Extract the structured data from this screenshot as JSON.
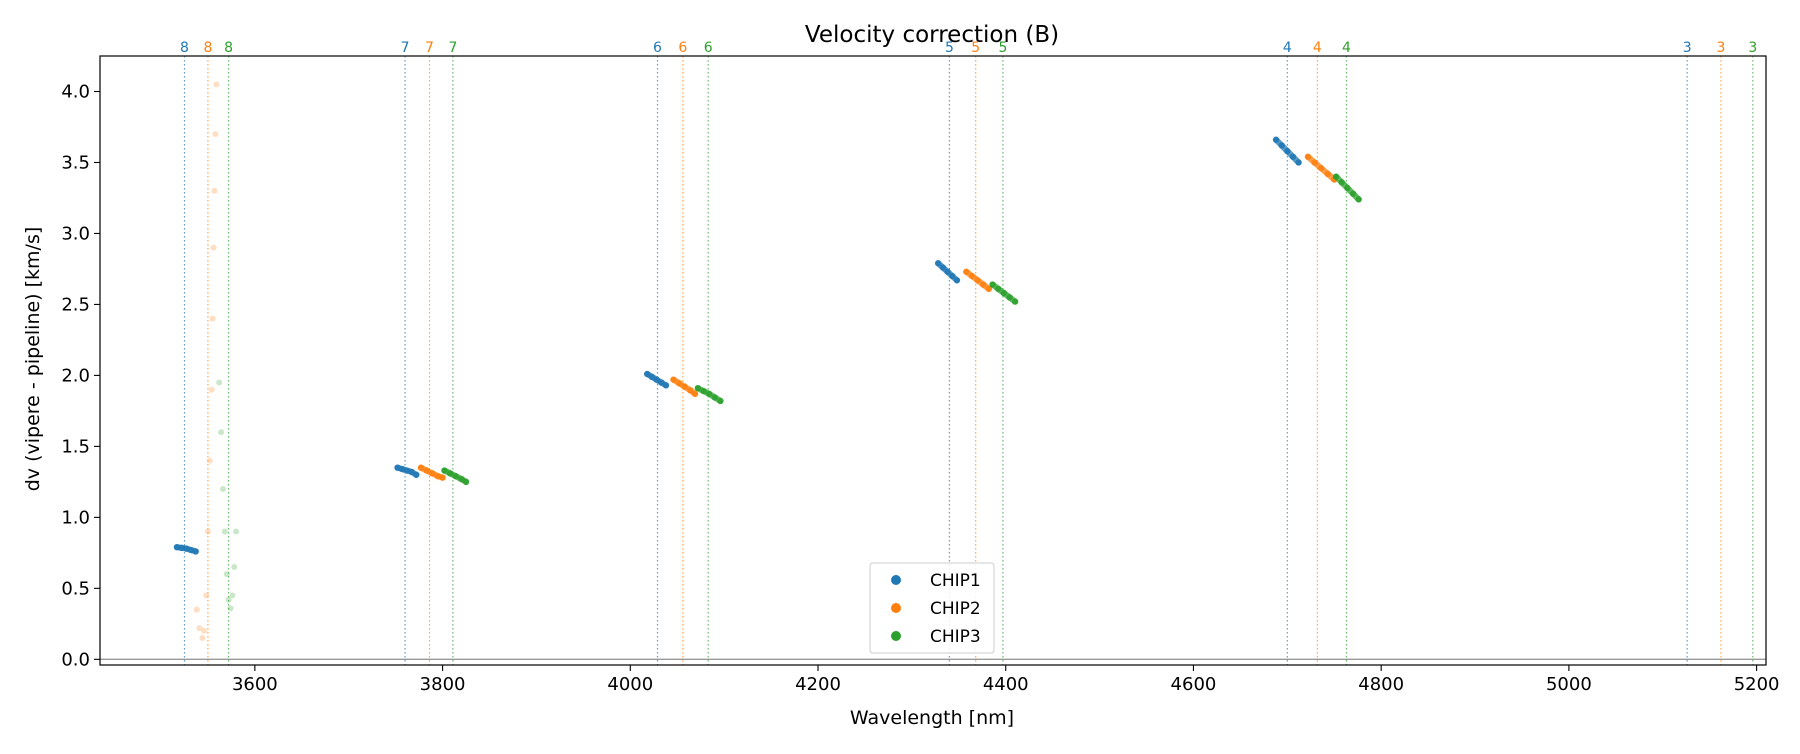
{
  "chart_data": {
    "type": "scatter",
    "title": "Velocity correction (B)",
    "xlabel": "Wavelength [nm]",
    "ylabel": "dv (vipere - pipeline) [km/s]",
    "xlim": [
      3435,
      5210
    ],
    "ylim": [
      -0.04,
      4.25
    ],
    "xticks": [
      3600,
      3800,
      4000,
      4200,
      4400,
      4600,
      4800,
      5000,
      5200
    ],
    "xtick_labels": [
      "3600",
      "3800",
      "4000",
      "4200",
      "4400",
      "4600",
      "4800",
      "5000",
      "5200"
    ],
    "yticks": [
      0.0,
      0.5,
      1.0,
      1.5,
      2.0,
      2.5,
      3.0,
      3.5,
      4.0
    ],
    "ytick_labels": [
      "0.0",
      "0.5",
      "1.0",
      "1.5",
      "2.0",
      "2.5",
      "3.0",
      "3.5",
      "4.0"
    ],
    "zero_line": 0,
    "legend": {
      "position": "bottom-center",
      "entries": [
        "CHIP1",
        "CHIP2",
        "CHIP3"
      ]
    },
    "colors": {
      "CHIP1": "#1f77b4",
      "CHIP2": "#ff7f0e",
      "CHIP3": "#2ca02c"
    },
    "order_markers": [
      {
        "order": "8",
        "label": "8",
        "chip": "CHIP1",
        "x": 3525
      },
      {
        "order": "8",
        "label": "8",
        "chip": "CHIP2",
        "x": 3550
      },
      {
        "order": "8",
        "label": "8",
        "chip": "CHIP3",
        "x": 3572
      },
      {
        "order": "7",
        "label": "7",
        "chip": "CHIP1",
        "x": 3760
      },
      {
        "order": "7",
        "label": "7",
        "chip": "CHIP2",
        "x": 3786
      },
      {
        "order": "7",
        "label": "7",
        "chip": "CHIP3",
        "x": 3811
      },
      {
        "order": "6",
        "label": "6",
        "chip": "CHIP1",
        "x": 4029
      },
      {
        "order": "6",
        "label": "6",
        "chip": "CHIP2",
        "x": 4056
      },
      {
        "order": "6",
        "label": "6",
        "chip": "CHIP3",
        "x": 4083
      },
      {
        "order": "5",
        "label": "5",
        "chip": "CHIP1",
        "x": 4340
      },
      {
        "order": "5",
        "label": "5",
        "chip": "CHIP2",
        "x": 4368
      },
      {
        "order": "5",
        "label": "5",
        "chip": "CHIP3",
        "x": 4397
      },
      {
        "order": "4",
        "label": "4",
        "chip": "CHIP1",
        "x": 4700
      },
      {
        "order": "4",
        "label": "4",
        "chip": "CHIP2",
        "x": 4732
      },
      {
        "order": "4",
        "label": "4",
        "chip": "CHIP3",
        "x": 4763
      },
      {
        "order": "3",
        "label": "3",
        "chip": "CHIP1",
        "x": 5126
      },
      {
        "order": "3",
        "label": "3",
        "chip": "CHIP2",
        "x": 5162
      },
      {
        "order": "3",
        "label": "3",
        "chip": "CHIP3",
        "x": 5196
      }
    ],
    "series": [
      {
        "name": "CHIP1",
        "order": "8",
        "x": [
          3517,
          3522,
          3527,
          3532,
          3537
        ],
        "y": [
          0.79,
          0.785,
          0.78,
          0.77,
          0.76
        ]
      },
      {
        "name": "CHIP1",
        "order": "7",
        "x": [
          3752,
          3757,
          3762,
          3767,
          3772
        ],
        "y": [
          1.35,
          1.34,
          1.33,
          1.32,
          1.3
        ]
      },
      {
        "name": "CHIP1",
        "order": "6",
        "x": [
          4018,
          4023,
          4028,
          4033,
          4038
        ],
        "y": [
          2.01,
          1.99,
          1.97,
          1.95,
          1.93
        ]
      },
      {
        "name": "CHIP1",
        "order": "5",
        "x": [
          4328,
          4333,
          4338,
          4343,
          4348
        ],
        "y": [
          2.79,
          2.76,
          2.73,
          2.7,
          2.67
        ]
      },
      {
        "name": "CHIP1",
        "order": "4",
        "x": [
          4688,
          4694,
          4700,
          4706,
          4712
        ],
        "y": [
          3.66,
          3.62,
          3.58,
          3.54,
          3.5
        ]
      },
      {
        "name": "CHIP2",
        "order": "7",
        "x": [
          3777,
          3783,
          3789,
          3795,
          3800
        ],
        "y": [
          1.35,
          1.33,
          1.31,
          1.29,
          1.28
        ]
      },
      {
        "name": "CHIP2",
        "order": "6",
        "x": [
          4046,
          4052,
          4058,
          4064,
          4069
        ],
        "y": [
          1.97,
          1.945,
          1.92,
          1.895,
          1.87
        ]
      },
      {
        "name": "CHIP2",
        "order": "5",
        "x": [
          4358,
          4364,
          4370,
          4376,
          4382
        ],
        "y": [
          2.73,
          2.7,
          2.67,
          2.64,
          2.61
        ]
      },
      {
        "name": "CHIP2",
        "order": "4",
        "x": [
          4722,
          4729,
          4736,
          4743,
          4750
        ],
        "y": [
          3.54,
          3.5,
          3.46,
          3.42,
          3.38
        ]
      },
      {
        "name": "CHIP3",
        "order": "7",
        "x": [
          3802,
          3808,
          3814,
          3820,
          3825
        ],
        "y": [
          1.33,
          1.31,
          1.29,
          1.27,
          1.25
        ]
      },
      {
        "name": "CHIP3",
        "order": "6",
        "x": [
          4072,
          4078,
          4084,
          4090,
          4096
        ],
        "y": [
          1.91,
          1.89,
          1.87,
          1.845,
          1.82
        ]
      },
      {
        "name": "CHIP3",
        "order": "5",
        "x": [
          4386,
          4392,
          4398,
          4404,
          4410
        ],
        "y": [
          2.64,
          2.61,
          2.58,
          2.55,
          2.52
        ]
      },
      {
        "name": "CHIP3",
        "order": "4",
        "x": [
          4752,
          4758,
          4764,
          4770,
          4776
        ],
        "y": [
          3.4,
          3.36,
          3.32,
          3.28,
          3.24
        ]
      }
    ],
    "faint_series": [
      {
        "name": "CHIP2",
        "order": "8",
        "x": [
          3538,
          3541,
          3544,
          3546,
          3548,
          3550,
          3552,
          3554,
          3555,
          3556,
          3557,
          3558,
          3559
        ],
        "y": [
          0.35,
          0.22,
          0.15,
          0.2,
          0.45,
          0.9,
          1.4,
          1.9,
          2.4,
          2.9,
          3.3,
          3.7,
          4.05
        ]
      },
      {
        "name": "CHIP3",
        "order": "8",
        "x": [
          3562,
          3564,
          3566,
          3568,
          3570,
          3572,
          3574,
          3576,
          3578,
          3580
        ],
        "y": [
          1.95,
          1.6,
          1.2,
          0.9,
          0.6,
          0.42,
          0.36,
          0.45,
          0.65,
          0.9
        ]
      }
    ]
  }
}
